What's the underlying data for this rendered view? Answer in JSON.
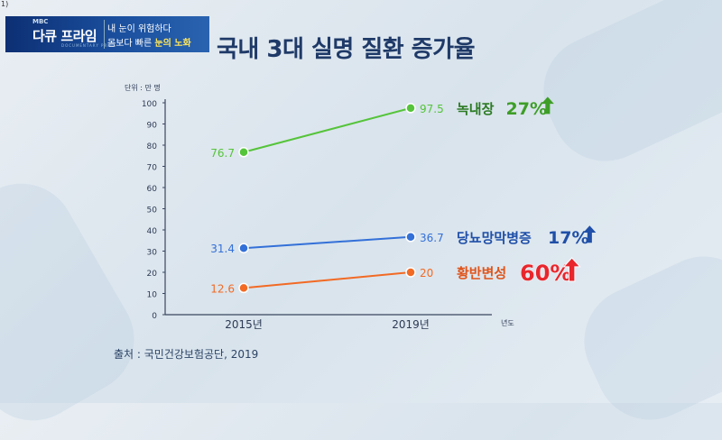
{
  "header": {
    "corner_mark": "1)",
    "logo_small": "MBC",
    "logo_brand": "다큐 프라임",
    "logo_sub": "DOCUMENTARY PRIME",
    "program_line1": "내 눈이 위험하다",
    "program_line2_prefix": "몸보다 빠른",
    "program_line2_highlight": "눈의 노화",
    "title": "국내 3대 실명 질환 증가율"
  },
  "source": "출처 : 국민건강보험공단, 2019",
  "colors": {
    "green": "#55c43a",
    "blue": "#3370d8",
    "orange": "#f26a24",
    "red": "#e8262c",
    "title": "#1f3a68"
  },
  "chart_data": {
    "type": "line",
    "unit_label": "단위 : 만 명",
    "x_unit": "년도",
    "categories": [
      "2015년",
      "2019년"
    ],
    "ylim": [
      0,
      100
    ],
    "yticks": [
      0,
      10,
      20,
      30,
      40,
      50,
      60,
      70,
      80,
      90,
      100
    ],
    "series": [
      {
        "name": "녹내장",
        "values": [
          76.7,
          97.5
        ],
        "value_labels": [
          "76.7",
          "97.5"
        ],
        "rate": "27%",
        "color": "#55c43a",
        "name_color": "#2b7a22",
        "rate_color": "#3e9e27",
        "arrow": "green-up-arrow"
      },
      {
        "name": "당뇨망막병증",
        "values": [
          31.4,
          36.7
        ],
        "value_labels": [
          "31.4",
          "36.7"
        ],
        "rate": "17%",
        "color": "#3370d8",
        "name_color": "#1f4fa8",
        "rate_color": "#1f4fa8",
        "arrow": "blue-up-arrow"
      },
      {
        "name": "황반변성",
        "values": [
          12.6,
          20
        ],
        "value_labels": [
          "12.6",
          "20"
        ],
        "rate": "60%",
        "color": "#f26a24",
        "name_color": "#e0541a",
        "rate_color": "#e8262c",
        "arrow": "red-up-arrow"
      }
    ]
  }
}
